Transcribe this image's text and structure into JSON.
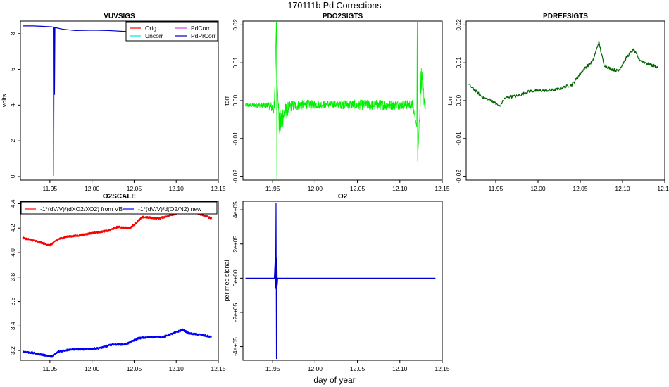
{
  "figure": {
    "title": "170111b   Pd Corrections",
    "xlabel": "day of year"
  },
  "colors": {
    "orig": "#ff0000",
    "uncorr": "#00e5e5",
    "pdcorr": "#e040e0",
    "pdprcorr": "#0000cd",
    "pdo2": "#00ee00",
    "pdref": "#006400",
    "vb": "#ff0000",
    "newcal": "#0000ff"
  },
  "chart_data": [
    {
      "id": "vuvsigs",
      "type": "line",
      "title": "VUVSIGS",
      "xlabel": "",
      "ylabel": "volts",
      "xlim": [
        11.915,
        12.15
      ],
      "ylim": [
        -0.2,
        8.7
      ],
      "xticks": [
        "11.95",
        "12.00",
        "12.05",
        "12.10",
        "12.15"
      ],
      "xtick_values": [
        11.95,
        12.0,
        12.05,
        12.1,
        12.15
      ],
      "yticks": [
        "0",
        "2",
        "4",
        "6",
        "8"
      ],
      "ytick_values": [
        0,
        2,
        4,
        6,
        8
      ],
      "legend": [
        "Orig",
        "Uncorr",
        "PdCorr",
        "PdPrCorr"
      ],
      "legend_position": "top-right",
      "series": [
        {
          "name": "PdPrCorr",
          "x": [
            11.918,
            11.93,
            11.94,
            11.952,
            11.954,
            11.9545,
            11.955,
            11.9555,
            11.956,
            11.965,
            11.98,
            12.0,
            12.02,
            12.04,
            12.06,
            12.08,
            12.1,
            12.12,
            12.143
          ],
          "values": [
            8.43,
            8.43,
            8.41,
            8.38,
            8.36,
            0.05,
            8.36,
            4.6,
            8.34,
            8.25,
            8.17,
            8.19,
            8.17,
            8.12,
            8.13,
            8.12,
            8.13,
            8.12,
            8.1
          ]
        }
      ]
    },
    {
      "id": "pdo2sigts",
      "type": "line",
      "title": "PDO2SIGTS",
      "xlabel": "",
      "ylabel": "torr",
      "xlim": [
        11.915,
        12.15
      ],
      "ylim": [
        -0.021,
        0.021
      ],
      "xticks": [
        "11.95",
        "12.00",
        "12.05",
        "12.10",
        "12.15"
      ],
      "xtick_values": [
        11.95,
        12.0,
        12.05,
        12.1,
        12.15
      ],
      "yticks": [
        "-0.02",
        "-0.01",
        "0.00",
        "0.01",
        "0.02"
      ],
      "ytick_values": [
        -0.02,
        -0.01,
        0.0,
        0.01,
        0.02
      ],
      "series": [
        {
          "name": "",
          "x": [
            11.918,
            11.93,
            11.945,
            11.952,
            11.9545,
            11.955,
            11.9555,
            11.958,
            11.962,
            11.97,
            11.99,
            12.02,
            12.05,
            12.08,
            12.1,
            12.115,
            12.12,
            12.1205,
            12.121,
            12.125,
            12.13
          ],
          "values": [
            -0.0012,
            -0.0012,
            -0.0013,
            -0.002,
            0.022,
            -0.021,
            0.004,
            -0.007,
            -0.004,
            -0.0015,
            -0.001,
            -0.001,
            -0.0011,
            -0.0012,
            -0.0011,
            -0.001,
            -0.007,
            0.022,
            -0.016,
            0.006,
            -0.0014
          ],
          "noise_amplitude": [
            0.0006,
            0.0006,
            0.0008,
            0.002,
            0,
            0,
            0,
            0.004,
            0.003,
            0.0015,
            0.0012,
            0.001,
            0.0013,
            0.0014,
            0.0012,
            0.0012,
            0,
            0,
            0,
            0.004,
            0.0015
          ]
        }
      ]
    },
    {
      "id": "pdrefsigts",
      "type": "line",
      "title": "PDREFSIGTS",
      "xlabel": "",
      "ylabel": "torr",
      "xlim": [
        11.915,
        12.15
      ],
      "ylim": [
        -0.021,
        0.021
      ],
      "xticks": [
        "11.95",
        "12.00",
        "12.05",
        "12.10",
        "12.15"
      ],
      "xtick_values": [
        11.95,
        12.0,
        12.05,
        12.1,
        12.15
      ],
      "yticks": [
        "-0.02",
        "-0.01",
        "0.00",
        "0.01",
        "0.02"
      ],
      "ytick_values": [
        -0.02,
        -0.01,
        0.0,
        0.01,
        0.02
      ],
      "series": [
        {
          "name": "",
          "x": [
            11.918,
            11.925,
            11.935,
            11.945,
            11.95,
            11.955,
            11.96,
            11.965,
            11.975,
            11.99,
            12.0,
            12.02,
            12.04,
            12.055,
            12.065,
            12.072,
            12.078,
            12.085,
            12.095,
            12.105,
            12.113,
            12.12,
            12.13,
            12.142
          ],
          "values": [
            0.0042,
            0.0028,
            0.0008,
            0.0,
            -0.0008,
            -0.0015,
            0.0005,
            0.001,
            0.0012,
            0.0025,
            0.0026,
            0.0028,
            0.0042,
            0.0085,
            0.0105,
            0.0155,
            0.0095,
            0.0085,
            0.0078,
            0.0115,
            0.0135,
            0.0108,
            0.0097,
            0.0088
          ],
          "noise_amplitude": 0.0004
        }
      ]
    },
    {
      "id": "o2scale",
      "type": "line",
      "title": "O2SCALE",
      "xlabel": "",
      "ylabel": "",
      "xlim": [
        11.915,
        12.15
      ],
      "ylim": [
        3.12,
        4.42
      ],
      "xticks": [
        "11.95",
        "12.00",
        "12.05",
        "12.10",
        "12.15"
      ],
      "xtick_values": [
        11.95,
        12.0,
        12.05,
        12.1,
        12.15
      ],
      "yticks": [
        "3.2",
        "3.4",
        "3.6",
        "3.8",
        "4.0",
        "4.2",
        "4.4"
      ],
      "ytick_values": [
        3.2,
        3.4,
        3.6,
        3.8,
        4.0,
        4.2,
        4.4
      ],
      "legend": [
        "-1*(dV/V)/(dXO2/XO2) from VB",
        "-1*(dV/V)/d(O2/N2) new"
      ],
      "legend_position": "top",
      "series": [
        {
          "name": "-1*(dV/V)/(dXO2/XO2) from VB",
          "x": [
            11.918,
            11.93,
            11.94,
            11.95,
            11.96,
            11.97,
            11.985,
            12.0,
            12.02,
            12.03,
            12.045,
            12.06,
            12.08,
            12.09,
            12.1,
            12.115,
            12.13,
            12.142
          ],
          "values": [
            4.12,
            4.1,
            4.08,
            4.06,
            4.11,
            4.13,
            4.14,
            4.16,
            4.18,
            4.21,
            4.2,
            4.29,
            4.28,
            4.3,
            4.32,
            4.34,
            4.31,
            4.28
          ]
        },
        {
          "name": "-1*(dV/V)/d(O2/N2) new",
          "x": [
            11.918,
            11.93,
            11.945,
            11.952,
            11.96,
            11.975,
            11.99,
            12.01,
            12.025,
            12.04,
            12.055,
            12.07,
            12.085,
            12.1,
            12.108,
            12.115,
            12.128,
            12.142
          ],
          "values": [
            3.19,
            3.18,
            3.16,
            3.15,
            3.19,
            3.21,
            3.21,
            3.22,
            3.25,
            3.25,
            3.3,
            3.31,
            3.31,
            3.35,
            3.37,
            3.34,
            3.33,
            3.31
          ]
        }
      ]
    },
    {
      "id": "o2",
      "type": "line",
      "title": "O2",
      "xlabel": "",
      "ylabel": "per meg signal",
      "xlim": [
        11.915,
        12.15
      ],
      "ylim": [
        -480000,
        450000
      ],
      "xticks": [
        "11.95",
        "12.00",
        "12.05",
        "12.10",
        "12.15"
      ],
      "xtick_values": [
        11.95,
        12.0,
        12.05,
        12.1,
        12.15
      ],
      "yticks": [
        "-4e+05",
        "-2e+05",
        "0e+00",
        "2e+05",
        "4e+05"
      ],
      "ytick_values": [
        -400000,
        -200000,
        0,
        200000,
        400000
      ],
      "series": [
        {
          "name": "",
          "x": [
            11.918,
            11.94,
            11.952,
            11.953,
            11.9535,
            11.954,
            11.9545,
            11.955,
            11.9555,
            11.956,
            11.98,
            12.02,
            12.06,
            12.1,
            12.142
          ],
          "values": [
            0,
            0,
            0,
            110000,
            -60000,
            440000,
            -470000,
            120000,
            -40000,
            0,
            0,
            0,
            0,
            0,
            0
          ]
        }
      ]
    }
  ]
}
